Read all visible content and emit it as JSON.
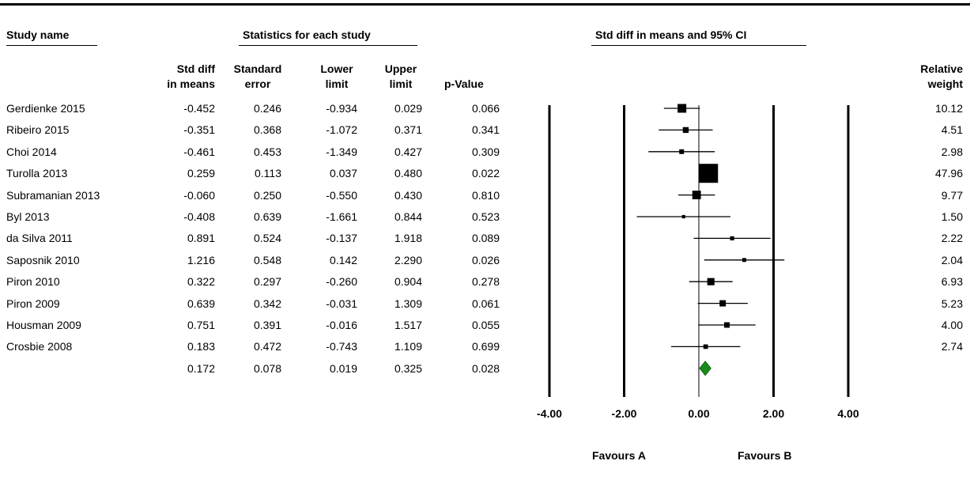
{
  "headers": {
    "study_name": "Study name",
    "statistics": "Statistics for each study",
    "ci_title": "Std diff in means and 95% CI",
    "col_std_diff": [
      "Std diff",
      "in means"
    ],
    "col_se": [
      "Standard",
      "error"
    ],
    "col_lower": [
      "Lower",
      "limit"
    ],
    "col_upper": [
      "Upper",
      "limit"
    ],
    "col_p": "p-Value",
    "col_weight": [
      "Relative",
      "weight"
    ]
  },
  "chart_data": {
    "type": "forest",
    "xlim": [
      -4,
      4
    ],
    "x_ticks": [
      "-4.00",
      "-2.00",
      "0.00",
      "2.00",
      "4.00"
    ],
    "x_tick_values": [
      -4,
      -2,
      0,
      2,
      4
    ],
    "favours_left": "Favours A",
    "favours_right": "Favours B",
    "studies": [
      {
        "name": "Gerdienke 2015",
        "std_diff": -0.452,
        "se": 0.246,
        "lower": -0.934,
        "upper": 0.029,
        "p": 0.066,
        "weight": 10.12
      },
      {
        "name": "Ribeiro 2015",
        "std_diff": -0.351,
        "se": 0.368,
        "lower": -1.072,
        "upper": 0.371,
        "p": 0.341,
        "weight": 4.51
      },
      {
        "name": "Choi 2014",
        "std_diff": -0.461,
        "se": 0.453,
        "lower": -1.349,
        "upper": 0.427,
        "p": 0.309,
        "weight": 2.98
      },
      {
        "name": "Turolla 2013",
        "std_diff": 0.259,
        "se": 0.113,
        "lower": 0.037,
        "upper": 0.48,
        "p": 0.022,
        "weight": 47.96
      },
      {
        "name": "Subramanian 2013",
        "std_diff": -0.06,
        "se": 0.25,
        "lower": -0.55,
        "upper": 0.43,
        "p": 0.81,
        "weight": 9.77
      },
      {
        "name": "Byl 2013",
        "std_diff": -0.408,
        "se": 0.639,
        "lower": -1.661,
        "upper": 0.844,
        "p": 0.523,
        "weight": 1.5
      },
      {
        "name": "da Silva 2011",
        "std_diff": 0.891,
        "se": 0.524,
        "lower": -0.137,
        "upper": 1.918,
        "p": 0.089,
        "weight": 2.22
      },
      {
        "name": "Saposnik 2010",
        "std_diff": 1.216,
        "se": 0.548,
        "lower": 0.142,
        "upper": 2.29,
        "p": 0.026,
        "weight": 2.04
      },
      {
        "name": "Piron 2010",
        "std_diff": 0.322,
        "se": 0.297,
        "lower": -0.26,
        "upper": 0.904,
        "p": 0.278,
        "weight": 6.93
      },
      {
        "name": "Piron 2009",
        "std_diff": 0.639,
        "se": 0.342,
        "lower": -0.031,
        "upper": 1.309,
        "p": 0.061,
        "weight": 5.23
      },
      {
        "name": "Housman 2009",
        "std_diff": 0.751,
        "se": 0.391,
        "lower": -0.016,
        "upper": 1.517,
        "p": 0.055,
        "weight": 4.0
      },
      {
        "name": "Crosbie 2008",
        "std_diff": 0.183,
        "se": 0.472,
        "lower": -0.743,
        "upper": 1.109,
        "p": 0.699,
        "weight": 2.74
      }
    ],
    "summary": {
      "std_diff": 0.172,
      "se": 0.078,
      "lower": 0.019,
      "upper": 0.325,
      "p": 0.028
    },
    "colors": {
      "ink": "#000000",
      "summary_diamond": "#1a8a1a"
    }
  }
}
